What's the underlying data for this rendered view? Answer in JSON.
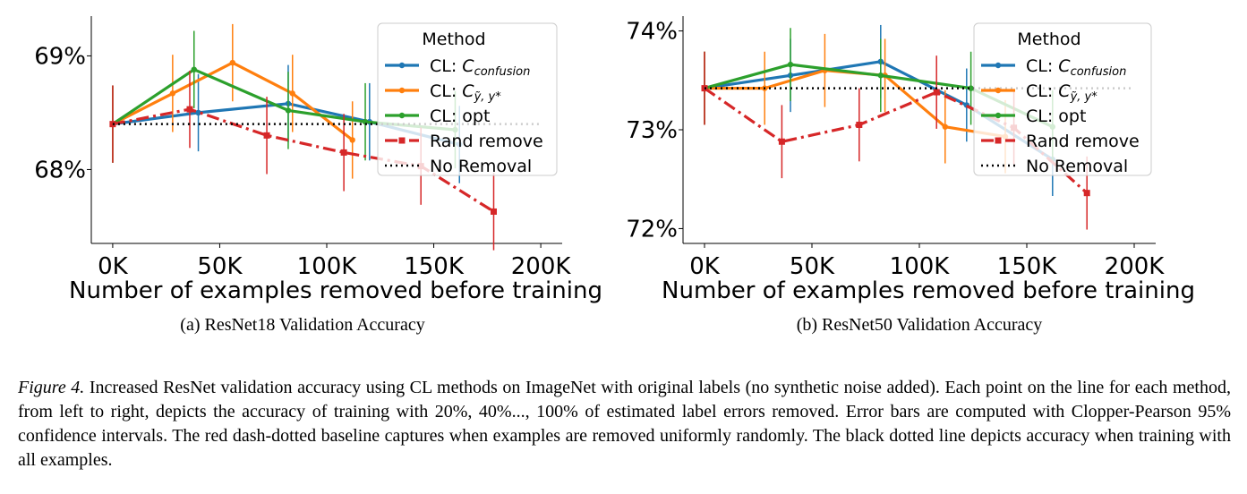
{
  "chart_data": [
    {
      "type": "line",
      "panel": "a",
      "title": "",
      "subcaption": "(a) ResNet18 Validation Accuracy",
      "xlabel": "Number of examples removed before training",
      "ylabel": "",
      "xlim": [
        -10,
        210
      ],
      "ylim": [
        67.35,
        69.35
      ],
      "xticks": [
        0,
        50,
        100,
        150,
        200
      ],
      "xtick_labels": [
        "0K",
        "50K",
        "100K",
        "150K",
        "200K"
      ],
      "yticks": [
        68,
        69
      ],
      "ytick_labels": [
        "68%",
        "69%"
      ],
      "legend": {
        "title": "Method",
        "placement": "top-right"
      },
      "series": [
        {
          "name": "CL: C_confusion",
          "label_main": "CL: ",
          "label_math": "C",
          "label_sub": "confusion",
          "color": "#1f77b4",
          "style": "solid",
          "x": [
            0,
            40,
            82,
            120,
            162
          ],
          "y": [
            68.4,
            68.5,
            68.58,
            68.42,
            68.22
          ],
          "err": [
            0.34,
            0.34,
            0.34,
            0.34,
            0.34
          ]
        },
        {
          "name": "CL: C_ỹ,y*",
          "label_main": "CL: ",
          "label_math": "C",
          "label_sub": "ỹ, y*",
          "color": "#ff7f0e",
          "style": "solid",
          "x": [
            0,
            28,
            56,
            84,
            112
          ],
          "y": [
            68.4,
            68.67,
            68.94,
            68.67,
            68.26
          ],
          "err": [
            0.34,
            0.34,
            0.34,
            0.34,
            0.34
          ]
        },
        {
          "name": "CL: opt",
          "label_main": "CL: opt",
          "label_math": "",
          "label_sub": "",
          "color": "#2ca02c",
          "style": "solid",
          "x": [
            0,
            38,
            82,
            118,
            160
          ],
          "y": [
            68.4,
            68.88,
            68.52,
            68.42,
            68.35
          ],
          "err": [
            0.34,
            0.34,
            0.34,
            0.34,
            0.34
          ]
        },
        {
          "name": "Rand remove",
          "label_main": "Rand remove",
          "label_math": "",
          "label_sub": "",
          "color": "#d62728",
          "style": "dashdot",
          "x": [
            0,
            36,
            72,
            108,
            144,
            178
          ],
          "y": [
            68.4,
            68.53,
            68.3,
            68.15,
            68.03,
            67.63
          ],
          "err": [
            0.34,
            0.34,
            0.34,
            0.34,
            0.34,
            0.34
          ]
        },
        {
          "name": "No Removal",
          "label_main": "No Removal",
          "label_math": "",
          "label_sub": "",
          "color": "#000000",
          "style": "dotted",
          "x": [
            0,
            200
          ],
          "y": [
            68.4,
            68.4
          ]
        }
      ]
    },
    {
      "type": "line",
      "panel": "b",
      "title": "",
      "subcaption": "(b) ResNet50 Validation Accuracy",
      "xlabel": "Number of examples removed before training",
      "ylabel": "",
      "xlim": [
        -10,
        210
      ],
      "ylim": [
        71.85,
        74.15
      ],
      "xticks": [
        0,
        50,
        100,
        150,
        200
      ],
      "xtick_labels": [
        "0K",
        "50K",
        "100K",
        "150K",
        "200K"
      ],
      "yticks": [
        72,
        73,
        74
      ],
      "ytick_labels": [
        "72%",
        "73%",
        "74%"
      ],
      "legend": {
        "title": "Method",
        "placement": "top-right"
      },
      "series": [
        {
          "name": "CL: C_confusion",
          "label_main": "CL: ",
          "label_math": "C",
          "label_sub": "confusion",
          "color": "#1f77b4",
          "style": "solid",
          "x": [
            0,
            40,
            82,
            122,
            162
          ],
          "y": [
            73.42,
            73.55,
            73.69,
            73.25,
            72.7
          ],
          "err": [
            0.37,
            0.37,
            0.37,
            0.37,
            0.37
          ]
        },
        {
          "name": "CL: C_ỹ,y*",
          "label_main": "CL: ",
          "label_math": "C",
          "label_sub": "ỹ, y*",
          "color": "#ff7f0e",
          "style": "solid",
          "x": [
            0,
            28,
            56,
            84,
            112,
            140
          ],
          "y": [
            73.42,
            73.42,
            73.6,
            73.55,
            73.03,
            72.93
          ],
          "err": [
            0.37,
            0.37,
            0.37,
            0.37,
            0.37,
            0.37
          ]
        },
        {
          "name": "CL: opt",
          "label_main": "CL: opt",
          "label_math": "",
          "label_sub": "",
          "color": "#2ca02c",
          "style": "solid",
          "x": [
            0,
            40,
            82,
            124,
            162
          ],
          "y": [
            73.42,
            73.66,
            73.55,
            73.42,
            73.03
          ],
          "err": [
            0.37,
            0.37,
            0.37,
            0.37,
            0.37
          ]
        },
        {
          "name": "Rand remove",
          "label_main": "Rand remove",
          "label_math": "",
          "label_sub": "",
          "color": "#d62728",
          "style": "dashdot",
          "x": [
            0,
            36,
            72,
            108,
            144,
            178
          ],
          "y": [
            73.42,
            72.88,
            73.05,
            73.38,
            73.02,
            72.36
          ],
          "err": [
            0.37,
            0.37,
            0.37,
            0.37,
            0.37,
            0.37
          ]
        },
        {
          "name": "No Removal",
          "label_main": "No Removal",
          "label_math": "",
          "label_sub": "",
          "color": "#000000",
          "style": "dotted",
          "x": [
            0,
            200
          ],
          "y": [
            73.42,
            73.42
          ]
        }
      ]
    }
  ],
  "caption": {
    "label": "Figure 4.",
    "text": " Increased ResNet validation accuracy using CL methods on ImageNet with original labels (no synthetic noise added). Each point on the line for each method, from left to right, depicts the accuracy of training with 20%, 40%..., 100% of estimated label errors removed. Error bars are computed with Clopper-Pearson 95% confidence intervals. The red dash-dotted baseline captures when examples are removed uniformly randomly. The black dotted line depicts accuracy when training with all examples."
  }
}
